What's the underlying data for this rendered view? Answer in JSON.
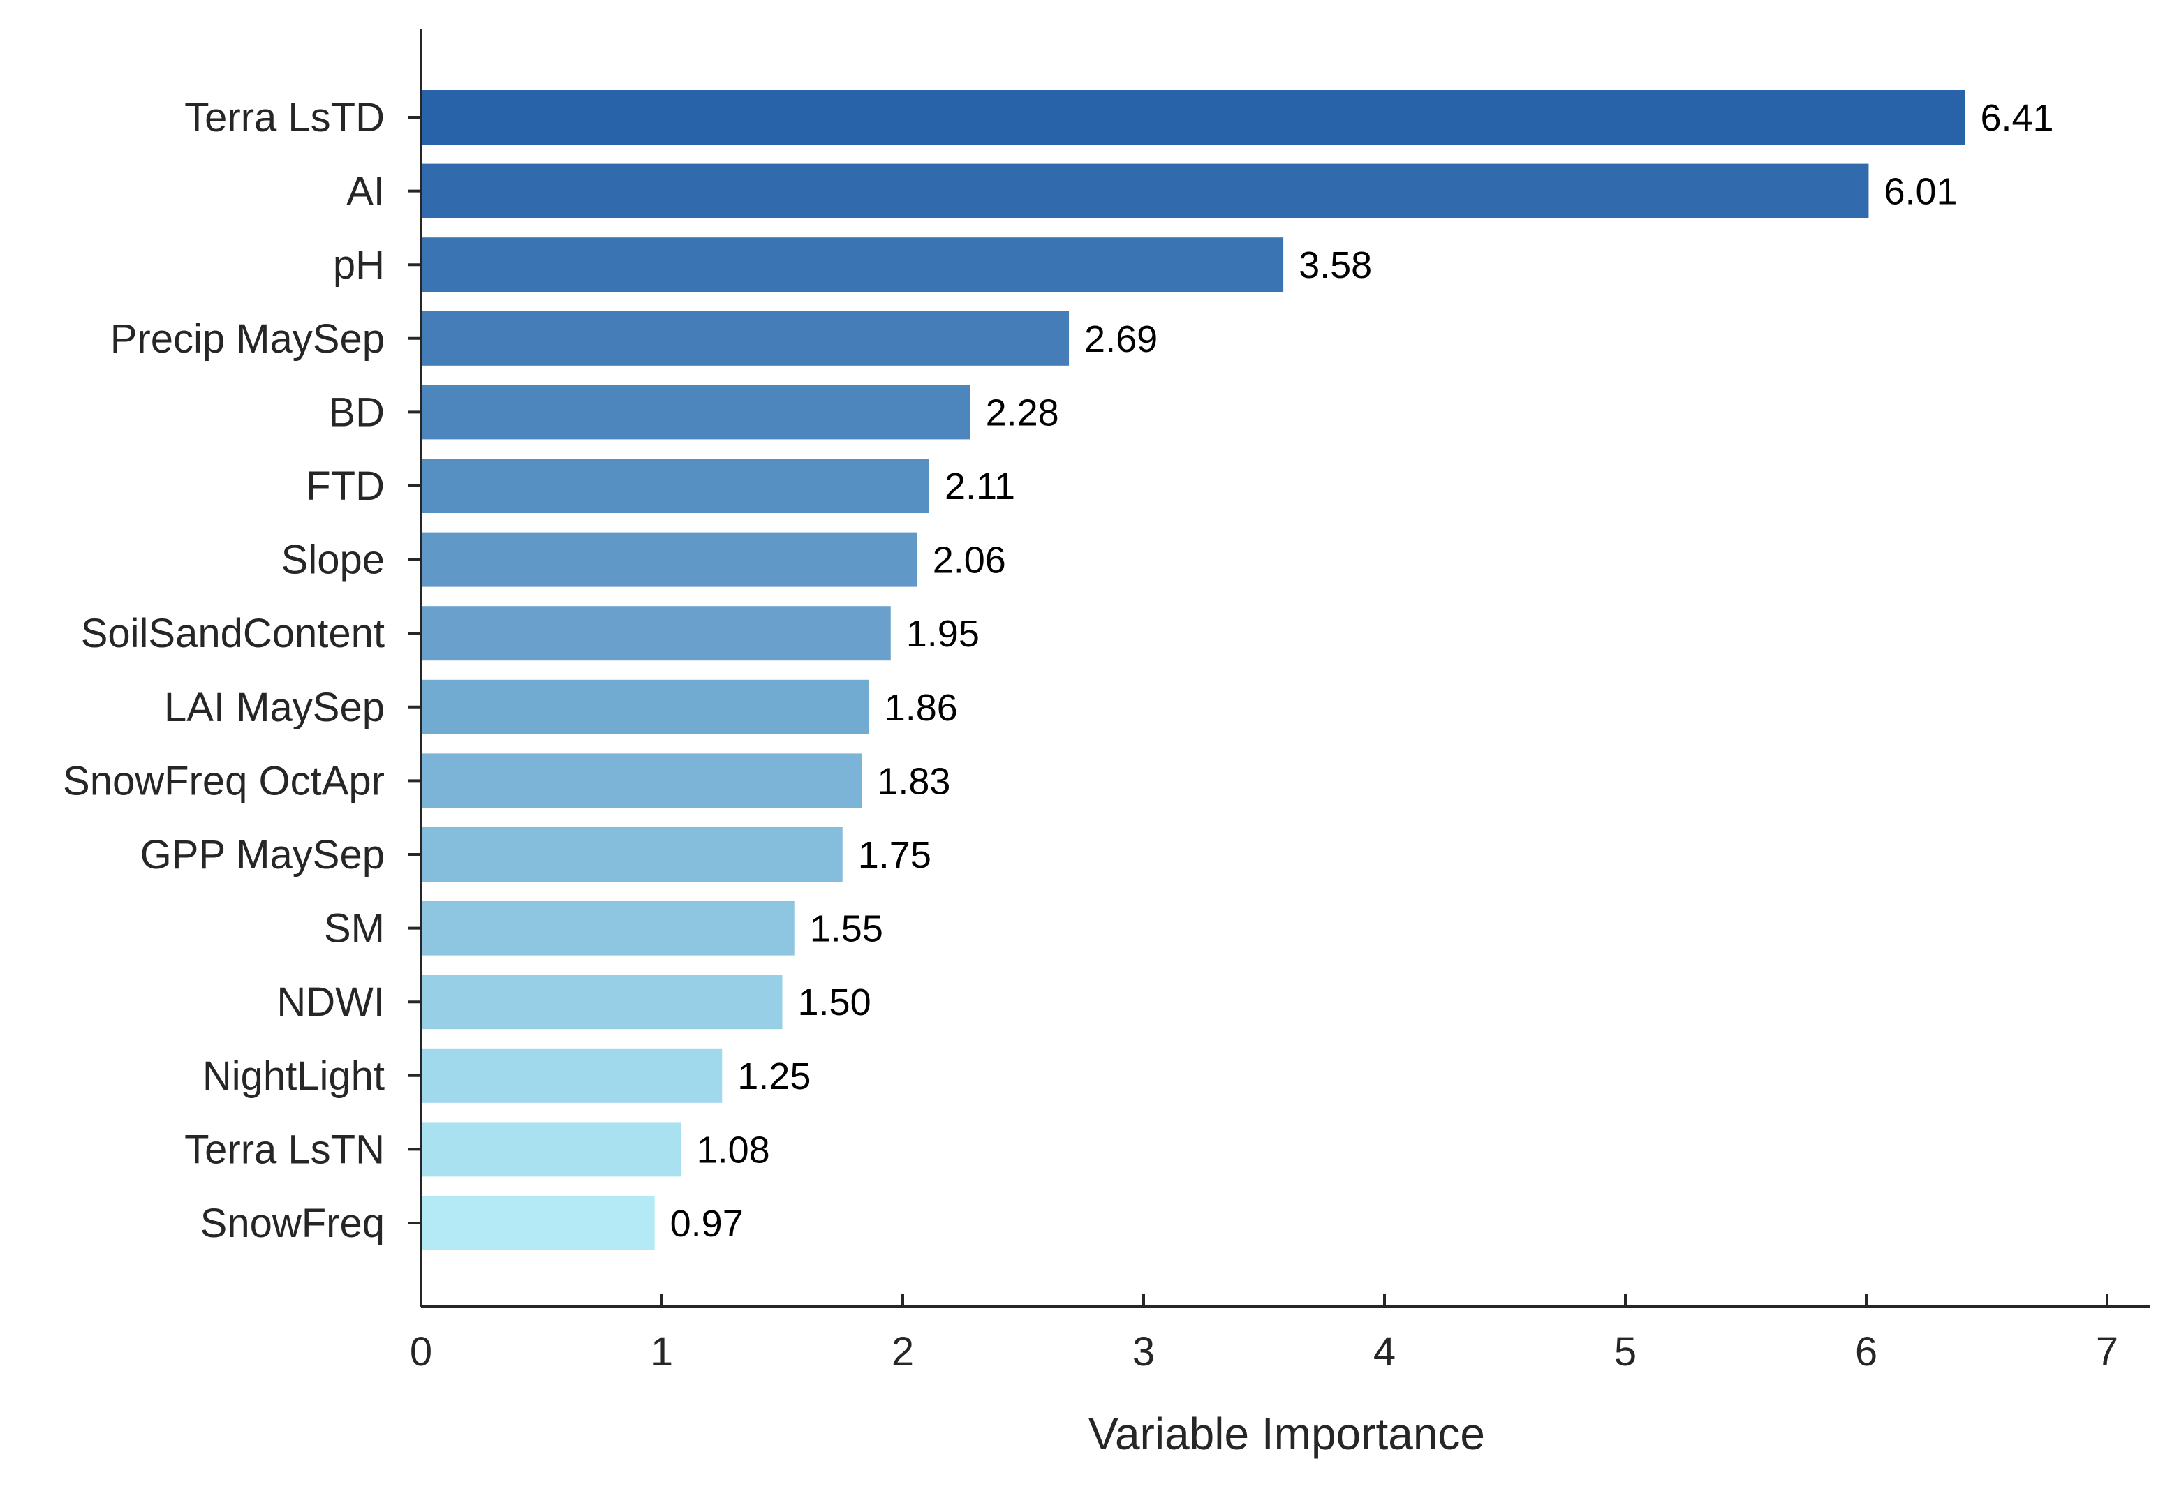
{
  "chart_data": {
    "type": "bar",
    "orientation": "horizontal",
    "title": "",
    "xlabel": "Variable Importance",
    "ylabel": "",
    "xlim": [
      0,
      7
    ],
    "xticks": [
      0,
      1,
      2,
      3,
      4,
      5,
      6,
      7
    ],
    "grid": false,
    "legend": "none",
    "categories": [
      "Terra LsTD",
      "AI",
      "pH",
      "Precip MaySep",
      "BD",
      "FTD",
      "Slope",
      "SoilSandContent",
      "LAI MaySep",
      "SnowFreq OctApr",
      "GPP MaySep",
      "SM",
      "NDWI",
      "NightLight",
      "Terra LsTN",
      "SnowFreq"
    ],
    "values": [
      6.41,
      6.01,
      3.58,
      2.69,
      2.28,
      2.11,
      2.06,
      1.95,
      1.86,
      1.83,
      1.75,
      1.55,
      1.5,
      1.25,
      1.08,
      0.97
    ],
    "value_labels": [
      "6.41",
      "6.01",
      "3.58",
      "2.69",
      "2.28",
      "2.11",
      "2.06",
      "1.95",
      "1.86",
      "1.83",
      "1.75",
      "1.55",
      "1.50",
      "1.25",
      "1.08",
      "0.97"
    ],
    "colors": {
      "bar_start": "#2862a8",
      "bar_end": "#b3eaf6",
      "axis": "#262626"
    }
  }
}
